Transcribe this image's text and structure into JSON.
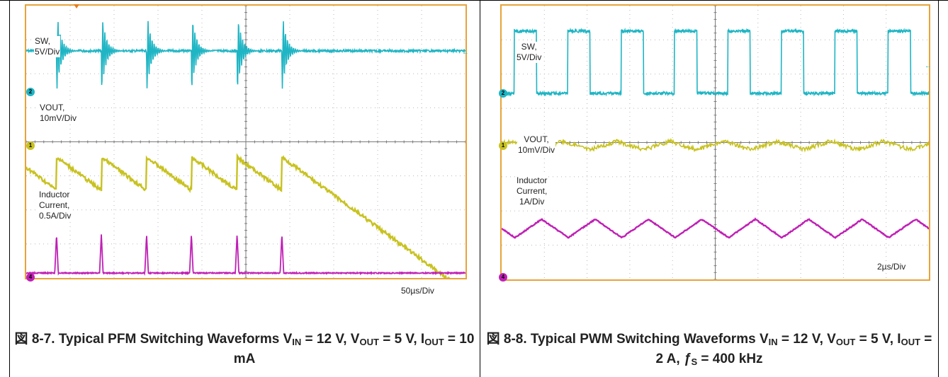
{
  "colors": {
    "sw": "#1fb5c4",
    "vout": "#c8c221",
    "inductor": "#c01fb5",
    "border": "#e8a33a",
    "grid": "#b8b8b8"
  },
  "chart_data": [
    {
      "type": "line",
      "title": "図 8-7. Typical PFM Switching Waveforms VIN = 12 V, VOUT = 5 V, IOUT = 10 mA",
      "timebase": "50µs/Div",
      "grid": true,
      "divisions": {
        "x": 10,
        "y": 8
      },
      "series": [
        {
          "name": "SW, 5V/Div",
          "channel": "2",
          "pulse_times_div": [
            0.69,
            1.71,
            2.74,
            3.76,
            4.8,
            5.82
          ],
          "baseline_div": 2.7
        },
        {
          "name": "VOUT, 10mV/Div",
          "channel": "1",
          "ramp_start_div": [
            0.69,
            1.71,
            2.74,
            3.76,
            4.8,
            5.82
          ],
          "center_div": 5.0,
          "ripple_div": 1.3
        },
        {
          "name": "Inductor Current, 0.5A/Div",
          "channel": "4",
          "spike_times_div": [
            0.69,
            1.71,
            2.74,
            3.76,
            4.8,
            5.82
          ],
          "baseline_div": 8.0
        }
      ]
    },
    {
      "type": "line",
      "title": "図 8-8. Typical PWM Switching Waveforms VIN = 12 V, VOUT = 5 V, IOUT = 2 A, fS = 400 kHz",
      "timebase": "2µs/Div",
      "grid": true,
      "divisions": {
        "x": 10,
        "y": 8
      },
      "series": [
        {
          "name": "SW, 5V/Div",
          "channel": "2",
          "period_div": 1.25,
          "duty": 0.42,
          "high_div": 0.4,
          "low_div": 2.6
        },
        {
          "name": "VOUT, 10mV/Div",
          "channel": "1",
          "period_div": 1.25,
          "center_div": 4.5,
          "ripple_div": 0.2
        },
        {
          "name": "Inductor Current, 1A/Div",
          "channel": "4",
          "period_div": 1.25,
          "min_div": 7.0,
          "max_div": 6.1
        }
      ]
    }
  ],
  "panels": [
    {
      "labels": {
        "sw": [
          "SW,",
          "5V/Div"
        ],
        "vout": [
          "VOUT,",
          "10mV/Div"
        ],
        "il": [
          "Inductor",
          "Current,",
          "0.5A/Div"
        ]
      },
      "time": "50µs/Div",
      "caption": {
        "prefix": "図 8-7. Typical PFM Switching Waveforms V",
        "sub1": "IN",
        "mid1": " = 12 V, V",
        "sub2": "OUT",
        "mid2": " = 5 V, I",
        "sub3": "OUT",
        "end": " = 10 mA"
      }
    },
    {
      "labels": {
        "sw": [
          "SW,",
          "5V/Div"
        ],
        "vout": [
          "VOUT,",
          "10mV/Div"
        ],
        "il": [
          "Inductor",
          "Current,",
          "1A/Div"
        ]
      },
      "time": "2µs/Div",
      "caption": {
        "prefix": "図 8-8. Typical PWM Switching Waveforms V",
        "sub1": "IN",
        "mid1": " = 12 V, V",
        "sub2": "OUT",
        "mid2": " = 5 V, I",
        "sub3": "OUT",
        "mid3": " = 2 A, ",
        "f": "ƒ",
        "sub4": "S",
        "end": " = 400 kHz"
      }
    }
  ]
}
